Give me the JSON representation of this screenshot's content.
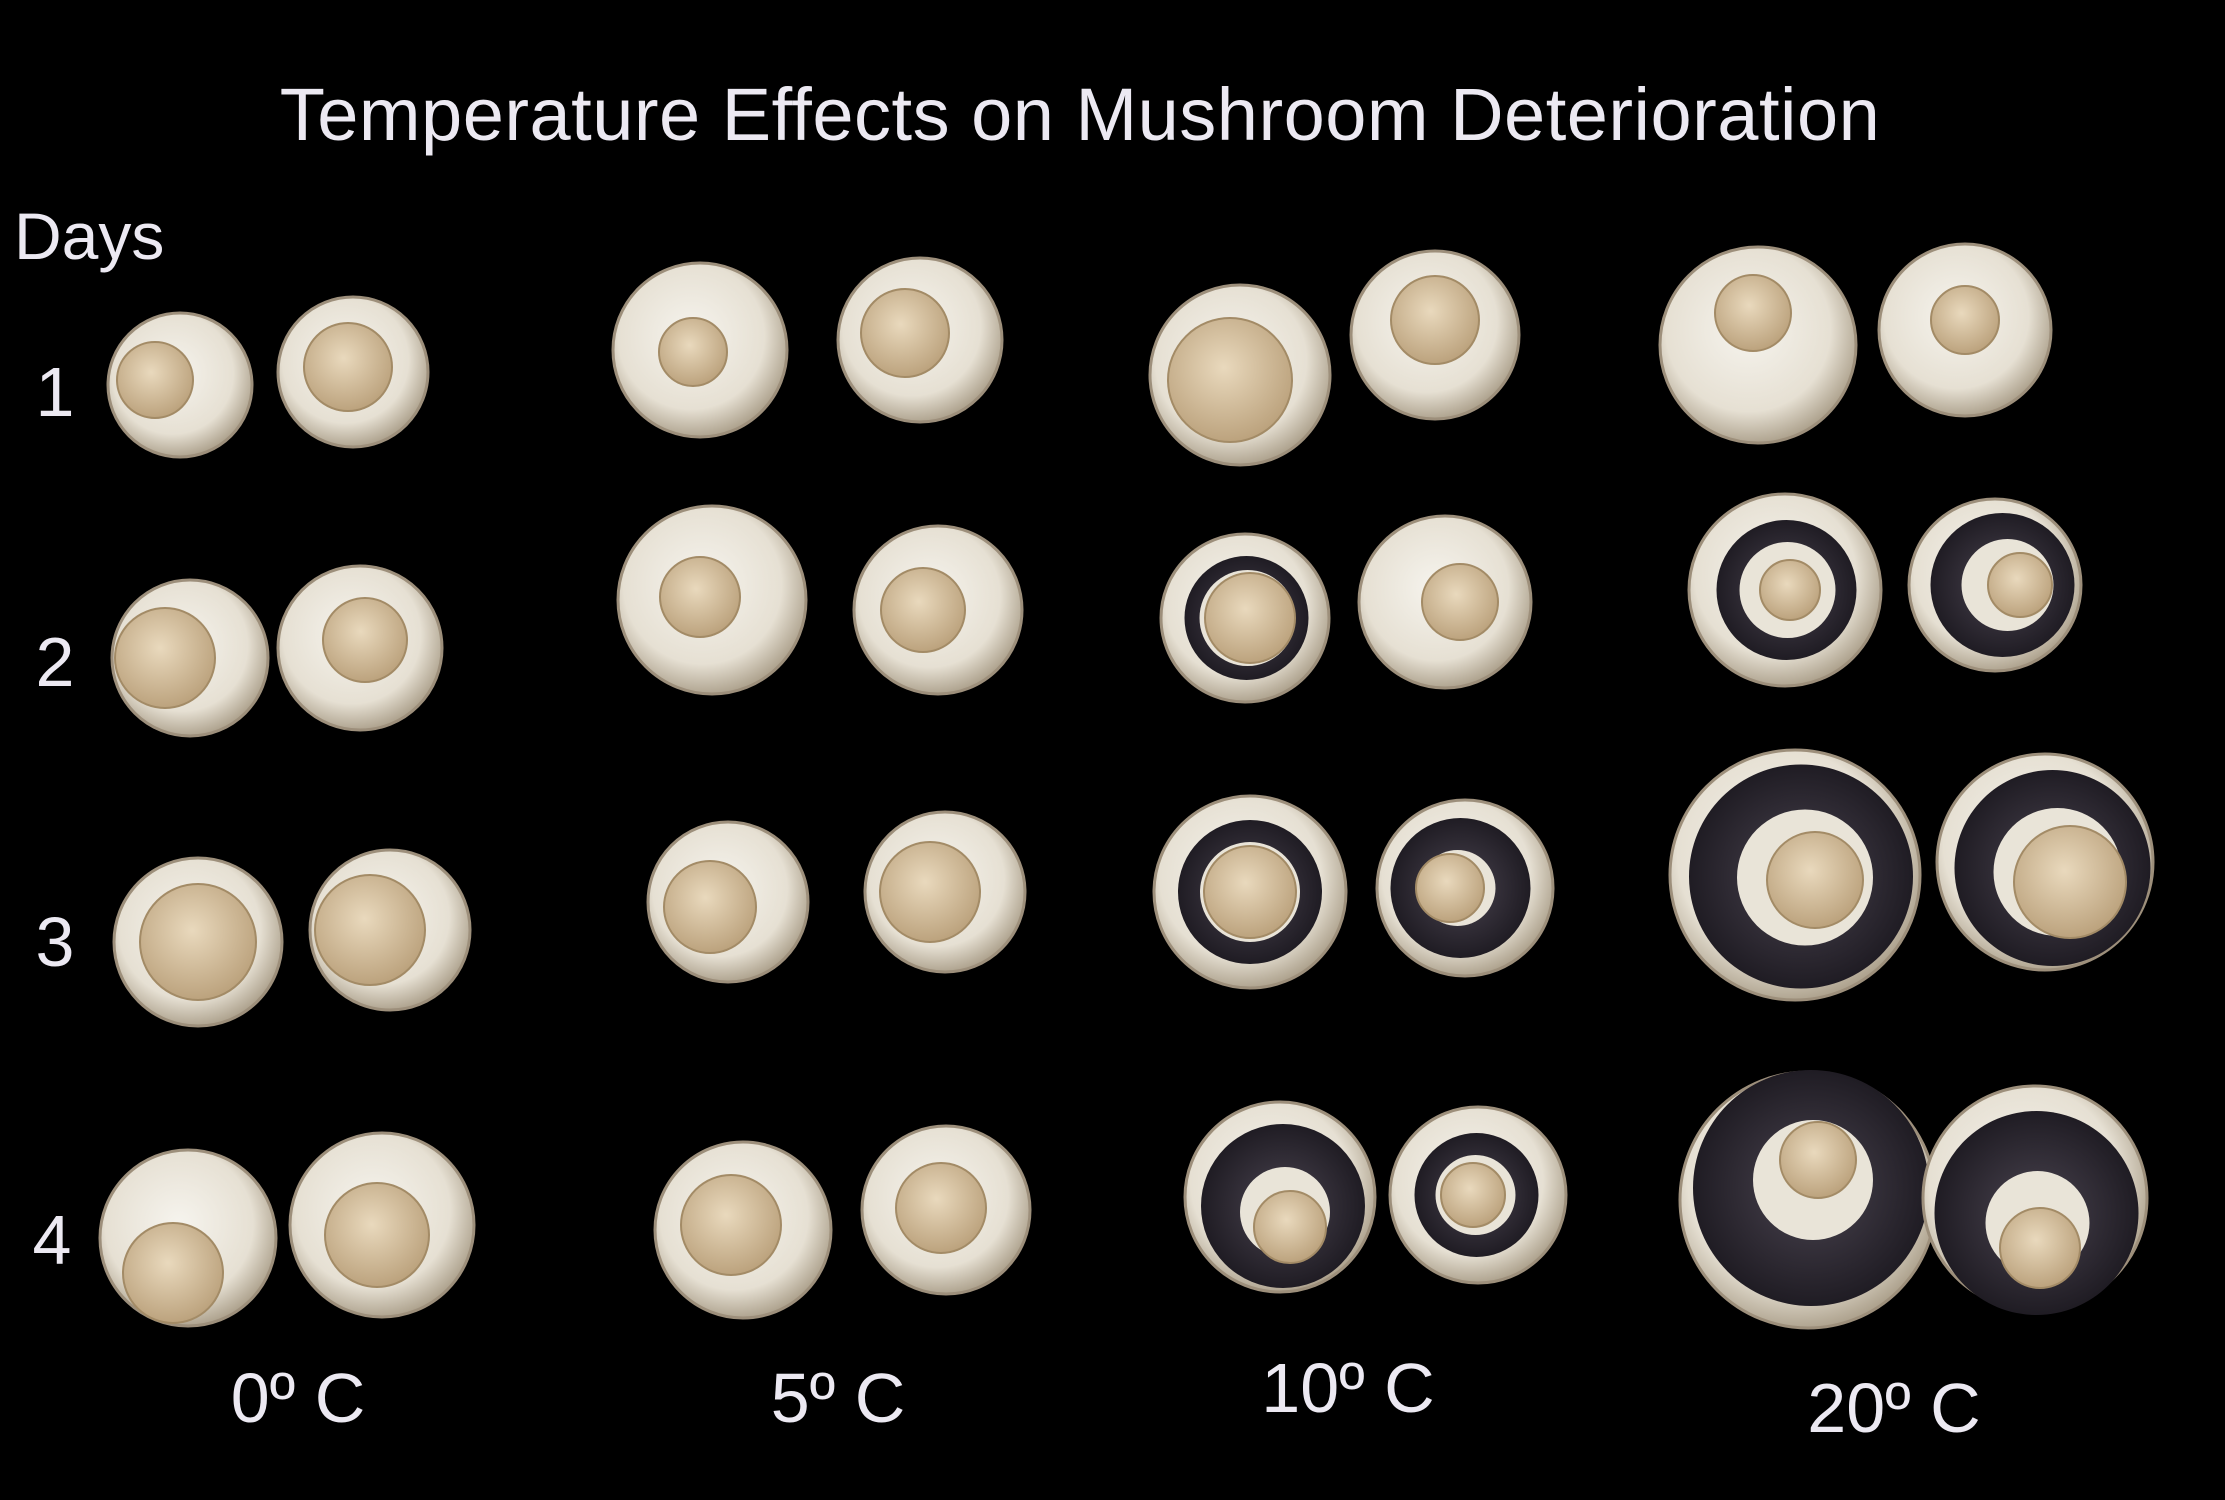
{
  "title": "Temperature Effects on Mushroom Deterioration",
  "y_axis_label": "Days",
  "days": [
    "1",
    "2",
    "3",
    "4"
  ],
  "temperatures": [
    "0º C",
    "5º C",
    "10º C",
    "20º C"
  ],
  "colors": {
    "background": "#000000",
    "text": "#ece9f2",
    "cap_white": "#efece4",
    "cap_shadow": "#bdb3a2",
    "stem": "#d8c3a0",
    "gills": "#2b2630"
  }
}
